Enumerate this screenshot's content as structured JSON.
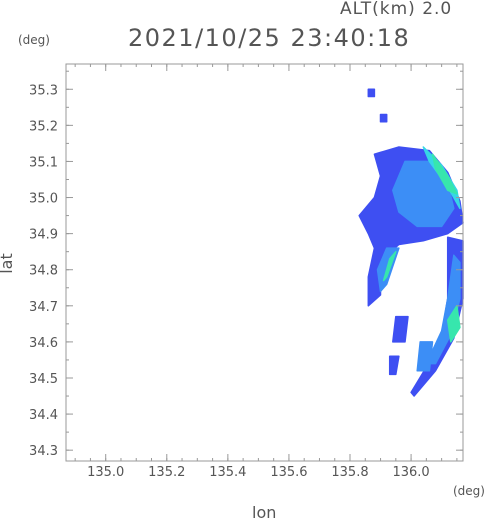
{
  "header": {
    "altitude_label": "ALT(km) 2.0",
    "timestamp": "2021/10/25 23:40:18"
  },
  "chart_data": {
    "type": "heatmap",
    "title": "2021/10/25 23:40:18",
    "xlabel": "lon",
    "ylabel": "lat",
    "x_unit": "(deg)",
    "y_unit": "(deg)",
    "xlim": [
      134.87,
      136.17
    ],
    "ylim": [
      34.27,
      35.37
    ],
    "x_ticks": [
      "135.0",
      "135.2",
      "135.4",
      "135.6",
      "135.8",
      "136.0"
    ],
    "y_ticks": [
      "34.3",
      "34.4",
      "34.5",
      "34.6",
      "34.7",
      "34.8",
      "34.9",
      "35.0",
      "35.1",
      "35.2",
      "35.3"
    ],
    "colors": {
      "weak": "#3e4ff2",
      "moderate": "#3c8ef6",
      "strong": "#36d6e6",
      "strongest": "#37e6ad",
      "axis": "#888888",
      "text": "#555555"
    },
    "echoes": [
      {
        "name": "main-band",
        "level": "weak",
        "points": [
          [
            135.88,
            35.12
          ],
          [
            135.96,
            35.14
          ],
          [
            136.06,
            35.13
          ],
          [
            136.12,
            35.07
          ],
          [
            136.16,
            34.99
          ],
          [
            136.17,
            34.93
          ],
          [
            136.12,
            34.9
          ],
          [
            136.04,
            34.88
          ],
          [
            135.96,
            34.87
          ],
          [
            135.92,
            34.84
          ],
          [
            135.9,
            34.78
          ],
          [
            135.9,
            34.73
          ],
          [
            135.86,
            34.7
          ],
          [
            135.86,
            34.78
          ],
          [
            135.88,
            34.86
          ],
          [
            135.86,
            34.9
          ],
          [
            135.83,
            34.95
          ],
          [
            135.88,
            35.0
          ],
          [
            135.9,
            35.06
          ]
        ]
      },
      {
        "name": "main-band-core",
        "level": "moderate",
        "points": [
          [
            135.98,
            35.1
          ],
          [
            136.06,
            35.1
          ],
          [
            136.12,
            35.04
          ],
          [
            136.14,
            34.97
          ],
          [
            136.1,
            34.92
          ],
          [
            136.02,
            34.92
          ],
          [
            135.96,
            34.96
          ],
          [
            135.94,
            35.02
          ]
        ]
      },
      {
        "name": "edge-strong",
        "level": "strong",
        "points": [
          [
            136.04,
            35.14
          ],
          [
            136.1,
            35.09
          ],
          [
            136.15,
            35.02
          ],
          [
            136.16,
            34.97
          ],
          [
            136.12,
            35.03
          ],
          [
            136.06,
            35.1
          ]
        ]
      },
      {
        "name": "edge-strongest",
        "level": "strongest",
        "points": [
          [
            136.07,
            35.12
          ],
          [
            136.12,
            35.06
          ],
          [
            136.15,
            35.01
          ],
          [
            136.12,
            35.02
          ],
          [
            136.08,
            35.08
          ]
        ]
      },
      {
        "name": "finger-south",
        "level": "moderate",
        "points": [
          [
            135.92,
            34.86
          ],
          [
            135.96,
            34.86
          ],
          [
            135.92,
            34.76
          ],
          [
            135.9,
            34.74
          ],
          [
            135.89,
            34.8
          ]
        ]
      },
      {
        "name": "finger-core",
        "level": "strongest",
        "points": [
          [
            135.93,
            34.83
          ],
          [
            135.95,
            34.85
          ],
          [
            135.92,
            34.78
          ],
          [
            135.91,
            34.77
          ]
        ]
      },
      {
        "name": "arc-south",
        "level": "weak",
        "points": [
          [
            136.12,
            34.89
          ],
          [
            136.17,
            34.88
          ],
          [
            136.17,
            34.72
          ],
          [
            136.14,
            34.61
          ],
          [
            136.08,
            34.52
          ],
          [
            136.01,
            34.45
          ],
          [
            136.0,
            34.46
          ],
          [
            136.05,
            34.53
          ],
          [
            136.1,
            34.62
          ],
          [
            136.12,
            34.72
          ],
          [
            136.12,
            34.8
          ]
        ]
      },
      {
        "name": "arc-south-core",
        "level": "moderate",
        "points": [
          [
            136.14,
            34.84
          ],
          [
            136.16,
            34.82
          ],
          [
            136.16,
            34.72
          ],
          [
            136.13,
            34.62
          ],
          [
            136.08,
            34.54
          ],
          [
            136.05,
            34.54
          ],
          [
            136.1,
            34.63
          ],
          [
            136.12,
            34.72
          ]
        ]
      },
      {
        "name": "arc-south-strong",
        "level": "strongest",
        "points": [
          [
            136.15,
            34.7
          ],
          [
            136.16,
            34.64
          ],
          [
            136.13,
            34.6
          ],
          [
            136.12,
            34.66
          ]
        ]
      },
      {
        "name": "blob-west-1",
        "level": "weak",
        "points": [
          [
            135.95,
            34.67
          ],
          [
            135.99,
            34.67
          ],
          [
            135.98,
            34.6
          ],
          [
            135.94,
            34.6
          ]
        ]
      },
      {
        "name": "blob-west-2",
        "level": "weak",
        "points": [
          [
            135.93,
            34.56
          ],
          [
            135.96,
            34.56
          ],
          [
            135.95,
            34.51
          ],
          [
            135.93,
            34.51
          ]
        ]
      },
      {
        "name": "blob-arc-inner",
        "level": "moderate",
        "points": [
          [
            136.03,
            34.6
          ],
          [
            136.07,
            34.6
          ],
          [
            136.06,
            34.52
          ],
          [
            136.02,
            34.52
          ]
        ]
      },
      {
        "name": "speck-north",
        "level": "weak",
        "points": [
          [
            135.86,
            35.3
          ],
          [
            135.88,
            35.3
          ],
          [
            135.88,
            35.28
          ],
          [
            135.86,
            35.28
          ]
        ]
      },
      {
        "name": "speck-north-2",
        "level": "weak",
        "points": [
          [
            135.9,
            35.23
          ],
          [
            135.92,
            35.23
          ],
          [
            135.92,
            35.21
          ],
          [
            135.9,
            35.21
          ]
        ]
      }
    ]
  },
  "axis_labels": {
    "x": "lon",
    "y": "lat",
    "x_unit": "(deg)",
    "y_unit": "(deg)"
  }
}
